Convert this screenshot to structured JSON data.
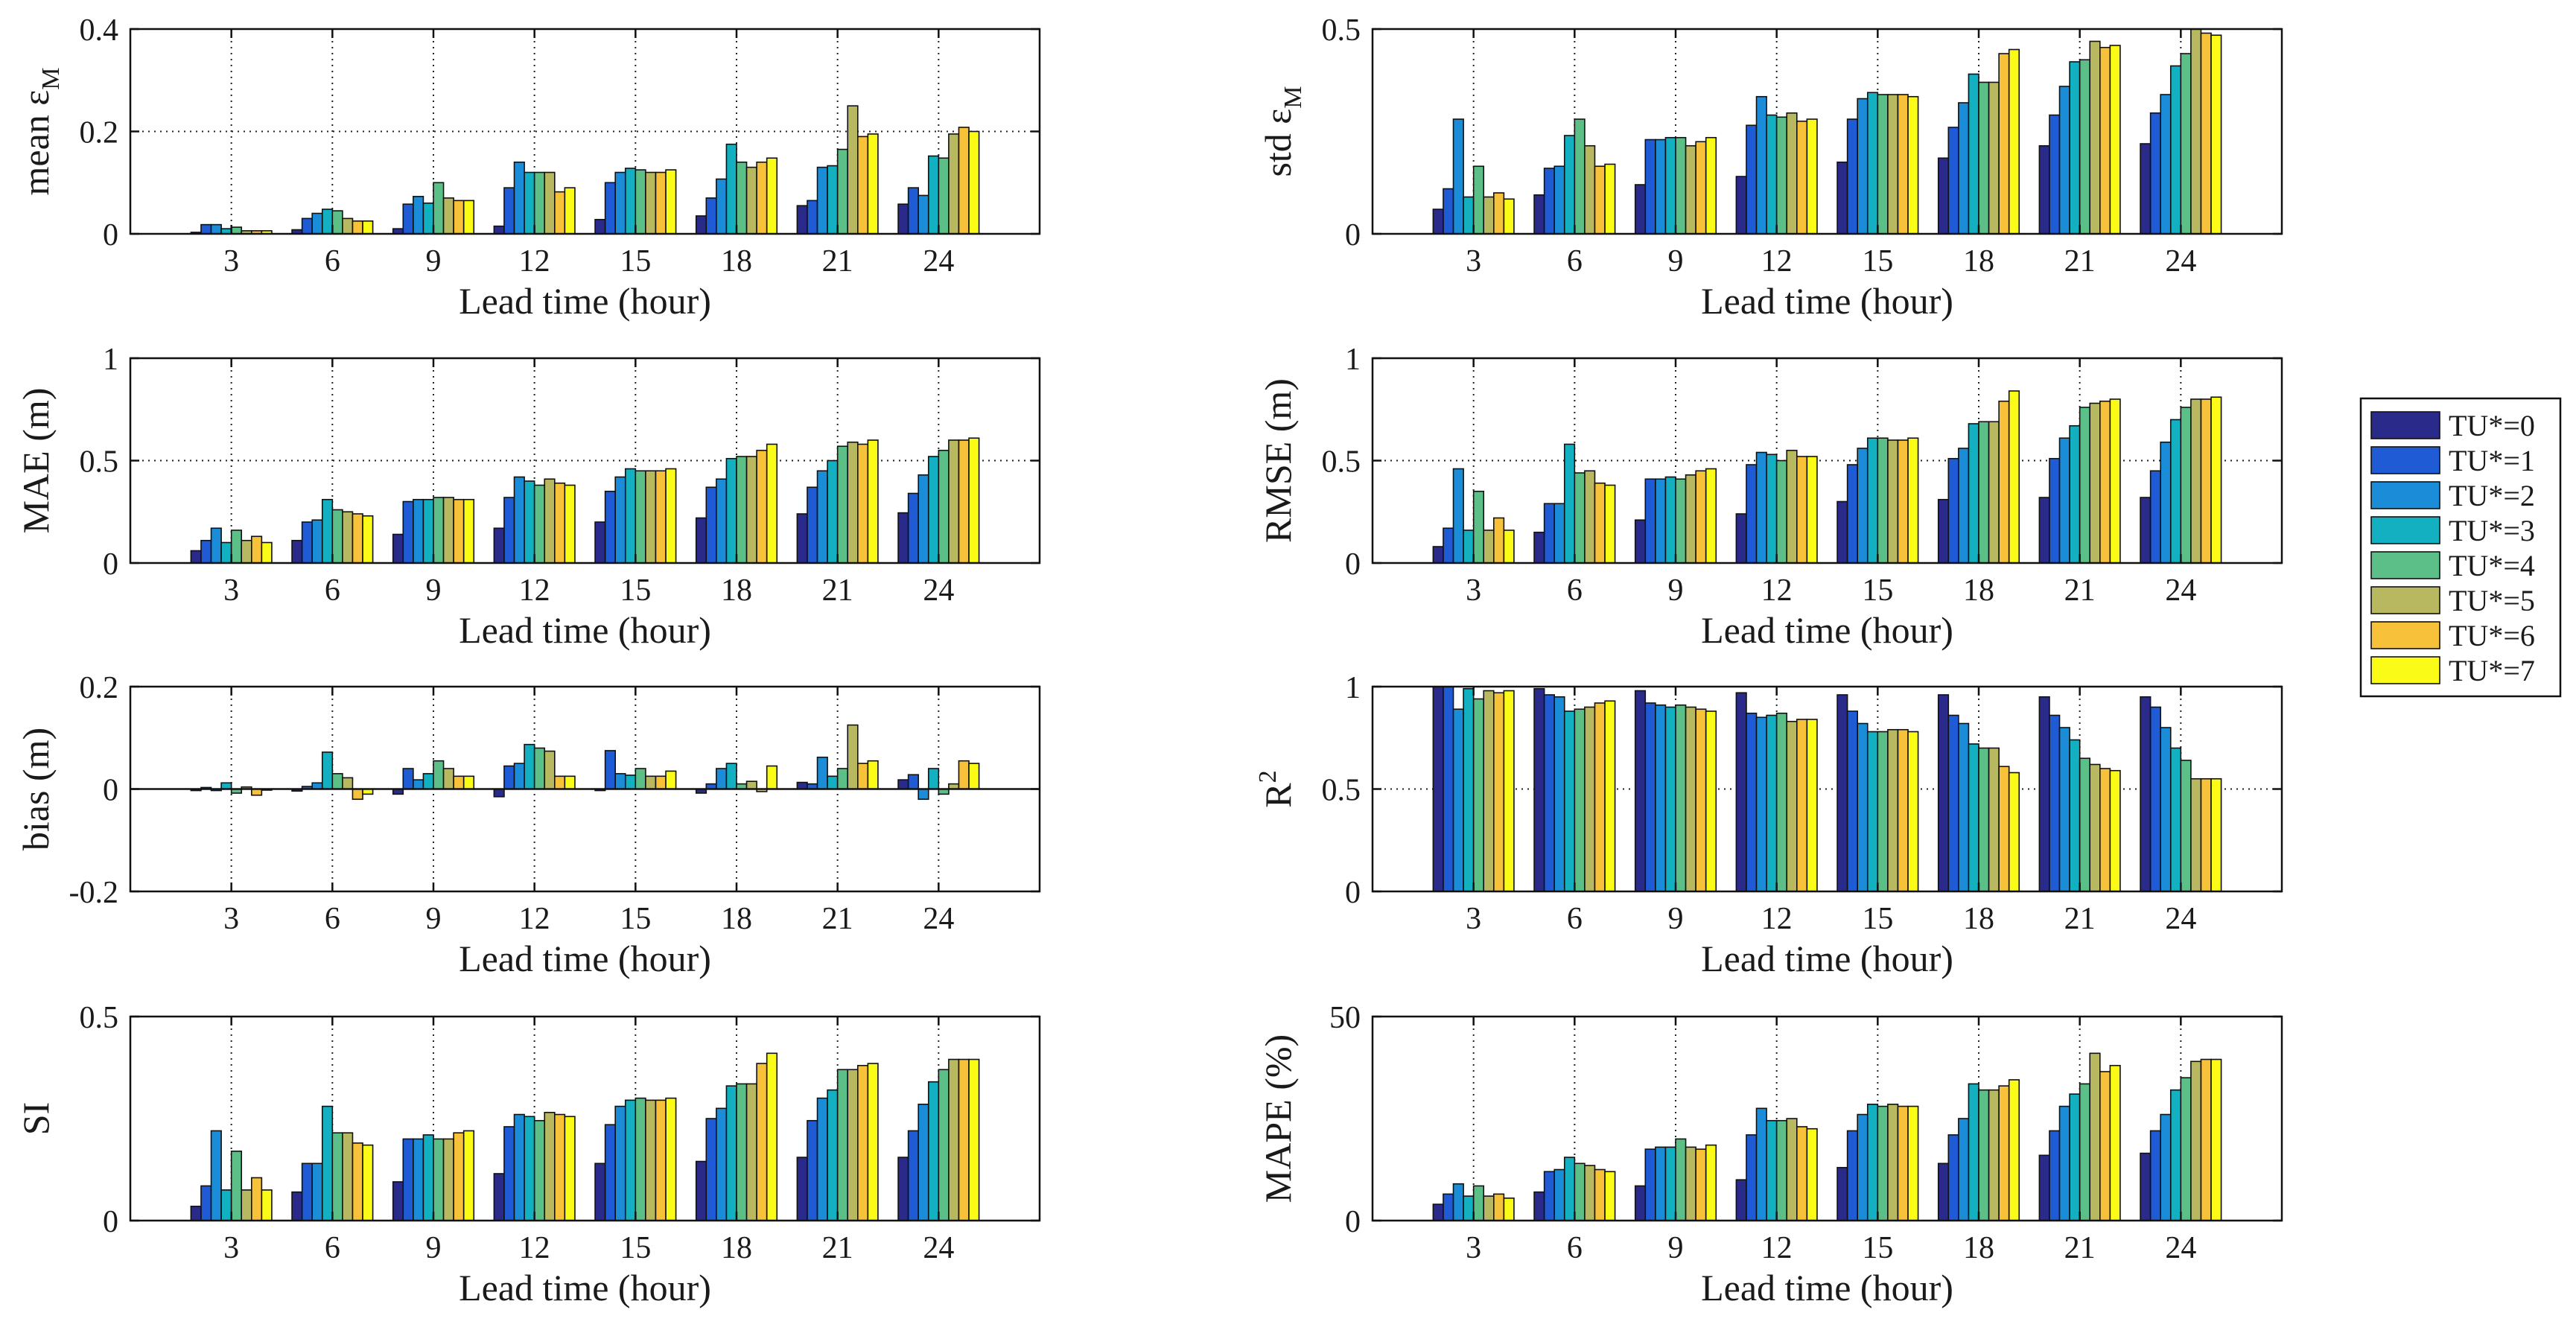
{
  "chart_data": [
    {
      "type": "bar",
      "ylabel": "mean ε",
      "ylabel_sub": "M",
      "xlabel": "Lead time (hour)",
      "categories": [
        "3",
        "6",
        "9",
        "12",
        "15",
        "18",
        "21",
        "24"
      ],
      "ylim": [
        0,
        0.4
      ],
      "yticks": [
        "0",
        "0.2",
        "0.4"
      ],
      "ytick_values": [
        0,
        0.2,
        0.4
      ],
      "series": [
        {
          "name": "TU*=0",
          "values": [
            0.003,
            0.008,
            0.01,
            0.015,
            0.028,
            0.035,
            0.055,
            0.058
          ]
        },
        {
          "name": "TU*=1",
          "values": [
            0.018,
            0.03,
            0.058,
            0.09,
            0.1,
            0.07,
            0.065,
            0.09
          ]
        },
        {
          "name": "TU*=2",
          "values": [
            0.018,
            0.04,
            0.073,
            0.14,
            0.12,
            0.107,
            0.13,
            0.075
          ]
        },
        {
          "name": "TU*=3",
          "values": [
            0.01,
            0.048,
            0.06,
            0.12,
            0.128,
            0.175,
            0.133,
            0.152
          ]
        },
        {
          "name": "TU*=4",
          "values": [
            0.013,
            0.045,
            0.1,
            0.12,
            0.125,
            0.14,
            0.165,
            0.148
          ]
        },
        {
          "name": "TU*=5",
          "values": [
            0.006,
            0.03,
            0.07,
            0.12,
            0.12,
            0.13,
            0.25,
            0.195
          ]
        },
        {
          "name": "TU*=6",
          "values": [
            0.006,
            0.025,
            0.065,
            0.082,
            0.12,
            0.14,
            0.19,
            0.208
          ]
        },
        {
          "name": "TU*=7",
          "values": [
            0.006,
            0.025,
            0.065,
            0.09,
            0.125,
            0.148,
            0.195,
            0.2
          ]
        }
      ]
    },
    {
      "type": "bar",
      "ylabel": "std ε",
      "ylabel_sub": "M",
      "xlabel": "Lead time (hour)",
      "categories": [
        "3",
        "6",
        "9",
        "12",
        "15",
        "18",
        "21",
        "24"
      ],
      "ylim": [
        0,
        0.5
      ],
      "yticks": [
        "0",
        "0.5"
      ],
      "ytick_values": [
        0,
        0.5
      ],
      "series": [
        {
          "name": "TU*=0",
          "values": [
            0.06,
            0.095,
            0.12,
            0.14,
            0.175,
            0.185,
            0.215,
            0.22
          ]
        },
        {
          "name": "TU*=1",
          "values": [
            0.11,
            0.16,
            0.23,
            0.265,
            0.28,
            0.26,
            0.29,
            0.295
          ]
        },
        {
          "name": "TU*=2",
          "values": [
            0.28,
            0.165,
            0.23,
            0.335,
            0.33,
            0.32,
            0.36,
            0.34
          ]
        },
        {
          "name": "TU*=3",
          "values": [
            0.09,
            0.24,
            0.235,
            0.29,
            0.345,
            0.39,
            0.42,
            0.41
          ]
        },
        {
          "name": "TU*=4",
          "values": [
            0.165,
            0.28,
            0.235,
            0.285,
            0.34,
            0.37,
            0.425,
            0.44
          ]
        },
        {
          "name": "TU*=5",
          "values": [
            0.09,
            0.215,
            0.215,
            0.295,
            0.34,
            0.37,
            0.47,
            0.5
          ]
        },
        {
          "name": "TU*=6",
          "values": [
            0.1,
            0.165,
            0.225,
            0.275,
            0.34,
            0.44,
            0.455,
            0.49
          ]
        },
        {
          "name": "TU*=7",
          "values": [
            0.085,
            0.17,
            0.235,
            0.28,
            0.335,
            0.45,
            0.46,
            0.485
          ]
        }
      ]
    },
    {
      "type": "bar",
      "ylabel": "MAE (m)",
      "xlabel": "Lead time (hour)",
      "categories": [
        "3",
        "6",
        "9",
        "12",
        "15",
        "18",
        "21",
        "24"
      ],
      "ylim": [
        0,
        1
      ],
      "yticks": [
        "0",
        "0.5",
        "1"
      ],
      "ytick_values": [
        0,
        0.5,
        1
      ],
      "series": [
        {
          "name": "TU*=0",
          "values": [
            0.06,
            0.11,
            0.14,
            0.17,
            0.2,
            0.22,
            0.24,
            0.245
          ]
        },
        {
          "name": "TU*=1",
          "values": [
            0.11,
            0.2,
            0.3,
            0.32,
            0.35,
            0.37,
            0.37,
            0.34
          ]
        },
        {
          "name": "TU*=2",
          "values": [
            0.17,
            0.21,
            0.31,
            0.42,
            0.42,
            0.41,
            0.45,
            0.43
          ]
        },
        {
          "name": "TU*=3",
          "values": [
            0.1,
            0.31,
            0.31,
            0.4,
            0.46,
            0.51,
            0.5,
            0.52
          ]
        },
        {
          "name": "TU*=4",
          "values": [
            0.16,
            0.26,
            0.32,
            0.38,
            0.45,
            0.52,
            0.57,
            0.55
          ]
        },
        {
          "name": "TU*=5",
          "values": [
            0.11,
            0.25,
            0.32,
            0.41,
            0.45,
            0.52,
            0.59,
            0.6
          ]
        },
        {
          "name": "TU*=6",
          "values": [
            0.13,
            0.24,
            0.31,
            0.39,
            0.45,
            0.55,
            0.58,
            0.6
          ]
        },
        {
          "name": "TU*=7",
          "values": [
            0.1,
            0.23,
            0.31,
            0.38,
            0.46,
            0.58,
            0.6,
            0.61
          ]
        }
      ]
    },
    {
      "type": "bar",
      "ylabel": "RMSE (m)",
      "xlabel": "Lead time (hour)",
      "categories": [
        "3",
        "6",
        "9",
        "12",
        "15",
        "18",
        "21",
        "24"
      ],
      "ylim": [
        0,
        1
      ],
      "yticks": [
        "0",
        "0.5",
        "1"
      ],
      "ytick_values": [
        0,
        0.5,
        1
      ],
      "series": [
        {
          "name": "TU*=0",
          "values": [
            0.08,
            0.15,
            0.21,
            0.24,
            0.3,
            0.31,
            0.32,
            0.32
          ]
        },
        {
          "name": "TU*=1",
          "values": [
            0.17,
            0.29,
            0.41,
            0.48,
            0.48,
            0.51,
            0.51,
            0.45
          ]
        },
        {
          "name": "TU*=2",
          "values": [
            0.46,
            0.29,
            0.41,
            0.54,
            0.56,
            0.56,
            0.61,
            0.59
          ]
        },
        {
          "name": "TU*=3",
          "values": [
            0.16,
            0.58,
            0.42,
            0.53,
            0.61,
            0.68,
            0.67,
            0.7
          ]
        },
        {
          "name": "TU*=4",
          "values": [
            0.35,
            0.44,
            0.41,
            0.5,
            0.61,
            0.69,
            0.76,
            0.76
          ]
        },
        {
          "name": "TU*=5",
          "values": [
            0.16,
            0.45,
            0.43,
            0.55,
            0.6,
            0.69,
            0.78,
            0.8
          ]
        },
        {
          "name": "TU*=6",
          "values": [
            0.22,
            0.39,
            0.45,
            0.52,
            0.6,
            0.79,
            0.79,
            0.8
          ]
        },
        {
          "name": "TU*=7",
          "values": [
            0.16,
            0.38,
            0.46,
            0.52,
            0.61,
            0.84,
            0.8,
            0.81
          ]
        }
      ]
    },
    {
      "type": "bar",
      "ylabel": "bias (m)",
      "xlabel": "Lead time (hour)",
      "categories": [
        "3",
        "6",
        "9",
        "12",
        "15",
        "18",
        "21",
        "24"
      ],
      "ylim": [
        -0.2,
        0.2
      ],
      "yticks": [
        "-0.2",
        "0",
        "0.2"
      ],
      "ytick_values": [
        -0.2,
        0,
        0.2
      ],
      "series": [
        {
          "name": "TU*=0",
          "values": [
            -0.003,
            -0.004,
            -0.01,
            -0.015,
            -0.003,
            -0.008,
            0.013,
            0.018
          ]
        },
        {
          "name": "TU*=1",
          "values": [
            0.003,
            0.005,
            0.04,
            0.045,
            0.075,
            0.01,
            0.01,
            0.028
          ]
        },
        {
          "name": "TU*=2",
          "values": [
            -0.003,
            0.012,
            0.018,
            0.05,
            0.03,
            0.04,
            0.062,
            -0.02
          ]
        },
        {
          "name": "TU*=3",
          "values": [
            0.012,
            0.072,
            0.03,
            0.087,
            0.027,
            0.05,
            0.025,
            0.04
          ]
        },
        {
          "name": "TU*=4",
          "values": [
            -0.008,
            0.03,
            0.055,
            0.08,
            0.04,
            0.01,
            0.04,
            -0.01
          ]
        },
        {
          "name": "TU*=5",
          "values": [
            0.004,
            0.022,
            0.04,
            0.074,
            0.025,
            0.015,
            0.125,
            0.01
          ]
        },
        {
          "name": "TU*=6",
          "values": [
            -0.012,
            -0.02,
            0.025,
            0.025,
            0.025,
            -0.005,
            0.05,
            0.055
          ]
        },
        {
          "name": "TU*=7",
          "values": [
            0.0,
            -0.01,
            0.025,
            0.025,
            0.035,
            0.045,
            0.055,
            0.05
          ]
        }
      ]
    },
    {
      "type": "bar",
      "ylabel": "R",
      "ylabel_sup": "2",
      "xlabel": "Lead time (hour)",
      "categories": [
        "3",
        "6",
        "9",
        "12",
        "15",
        "18",
        "21",
        "24"
      ],
      "ylim": [
        0,
        1
      ],
      "yticks": [
        "0",
        "0.5",
        "1"
      ],
      "ytick_values": [
        0,
        0.5,
        1
      ],
      "series": [
        {
          "name": "TU*=0",
          "values": [
            1.0,
            0.99,
            0.98,
            0.97,
            0.96,
            0.96,
            0.95,
            0.95
          ]
        },
        {
          "name": "TU*=1",
          "values": [
            1.0,
            0.96,
            0.92,
            0.87,
            0.88,
            0.86,
            0.86,
            0.9
          ]
        },
        {
          "name": "TU*=2",
          "values": [
            0.89,
            0.95,
            0.91,
            0.85,
            0.82,
            0.82,
            0.8,
            0.8
          ]
        },
        {
          "name": "TU*=3",
          "values": [
            0.99,
            0.88,
            0.9,
            0.86,
            0.78,
            0.72,
            0.74,
            0.7
          ]
        },
        {
          "name": "TU*=4",
          "values": [
            0.94,
            0.89,
            0.91,
            0.87,
            0.78,
            0.7,
            0.65,
            0.64
          ]
        },
        {
          "name": "TU*=5",
          "values": [
            0.98,
            0.9,
            0.9,
            0.83,
            0.79,
            0.7,
            0.62,
            0.55
          ]
        },
        {
          "name": "TU*=6",
          "values": [
            0.97,
            0.92,
            0.89,
            0.84,
            0.79,
            0.61,
            0.6,
            0.55
          ]
        },
        {
          "name": "TU*=7",
          "values": [
            0.98,
            0.93,
            0.88,
            0.84,
            0.78,
            0.58,
            0.59,
            0.55
          ]
        }
      ]
    },
    {
      "type": "bar",
      "ylabel": "SI",
      "xlabel": "Lead time (hour)",
      "categories": [
        "3",
        "6",
        "9",
        "12",
        "15",
        "18",
        "21",
        "24"
      ],
      "ylim": [
        0,
        0.5
      ],
      "yticks": [
        "0",
        "0.5"
      ],
      "ytick_values": [
        0,
        0.5
      ],
      "series": [
        {
          "name": "TU*=0",
          "values": [
            0.035,
            0.07,
            0.095,
            0.115,
            0.14,
            0.145,
            0.155,
            0.155
          ]
        },
        {
          "name": "TU*=1",
          "values": [
            0.085,
            0.14,
            0.2,
            0.23,
            0.235,
            0.25,
            0.245,
            0.22
          ]
        },
        {
          "name": "TU*=2",
          "values": [
            0.22,
            0.14,
            0.2,
            0.26,
            0.28,
            0.275,
            0.3,
            0.285
          ]
        },
        {
          "name": "TU*=3",
          "values": [
            0.075,
            0.28,
            0.21,
            0.255,
            0.295,
            0.33,
            0.32,
            0.34
          ]
        },
        {
          "name": "TU*=4",
          "values": [
            0.17,
            0.215,
            0.2,
            0.245,
            0.3,
            0.335,
            0.37,
            0.37
          ]
        },
        {
          "name": "TU*=5",
          "values": [
            0.075,
            0.215,
            0.2,
            0.265,
            0.295,
            0.335,
            0.37,
            0.395
          ]
        },
        {
          "name": "TU*=6",
          "values": [
            0.105,
            0.19,
            0.215,
            0.26,
            0.295,
            0.385,
            0.38,
            0.395
          ]
        },
        {
          "name": "TU*=7",
          "values": [
            0.075,
            0.185,
            0.22,
            0.255,
            0.3,
            0.41,
            0.385,
            0.395
          ]
        }
      ]
    },
    {
      "type": "bar",
      "ylabel": "MAPE (%)",
      "xlabel": "Lead time (hour)",
      "categories": [
        "3",
        "6",
        "9",
        "12",
        "15",
        "18",
        "21",
        "24"
      ],
      "ylim": [
        0,
        50
      ],
      "yticks": [
        "0",
        "50"
      ],
      "ytick_values": [
        0,
        50
      ],
      "series": [
        {
          "name": "TU*=0",
          "values": [
            4,
            7,
            8.5,
            10,
            13,
            14,
            16,
            16.5
          ]
        },
        {
          "name": "TU*=1",
          "values": [
            6.5,
            12,
            17.5,
            21,
            22,
            21,
            22,
            22
          ]
        },
        {
          "name": "TU*=2",
          "values": [
            9,
            12.5,
            18,
            27.5,
            26,
            25,
            28,
            26
          ]
        },
        {
          "name": "TU*=3",
          "values": [
            6,
            15.5,
            18,
            24.5,
            28.5,
            33.5,
            31,
            32
          ]
        },
        {
          "name": "TU*=4",
          "values": [
            8.5,
            14,
            20,
            24.5,
            28,
            32,
            33.5,
            35
          ]
        },
        {
          "name": "TU*=5",
          "values": [
            6,
            13.5,
            18,
            25,
            28.5,
            32,
            41,
            39
          ]
        },
        {
          "name": "TU*=6",
          "values": [
            6.5,
            12.5,
            17.5,
            23,
            28,
            33,
            36.5,
            39.5
          ]
        },
        {
          "name": "TU*=7",
          "values": [
            5.5,
            12,
            18.5,
            22.5,
            28,
            34.5,
            38,
            39.5
          ]
        }
      ]
    }
  ],
  "legend": {
    "placement": "right",
    "entries": [
      "TU*=0",
      "TU*=1",
      "TU*=2",
      "TU*=3",
      "TU*=4",
      "TU*=5",
      "TU*=6",
      "TU*=7"
    ],
    "colors": [
      "#2a2a8a",
      "#1f5bd4",
      "#1a8cd8",
      "#12b0c0",
      "#5cbf88",
      "#b8b860",
      "#f7c23a",
      "#fbfb18"
    ]
  }
}
